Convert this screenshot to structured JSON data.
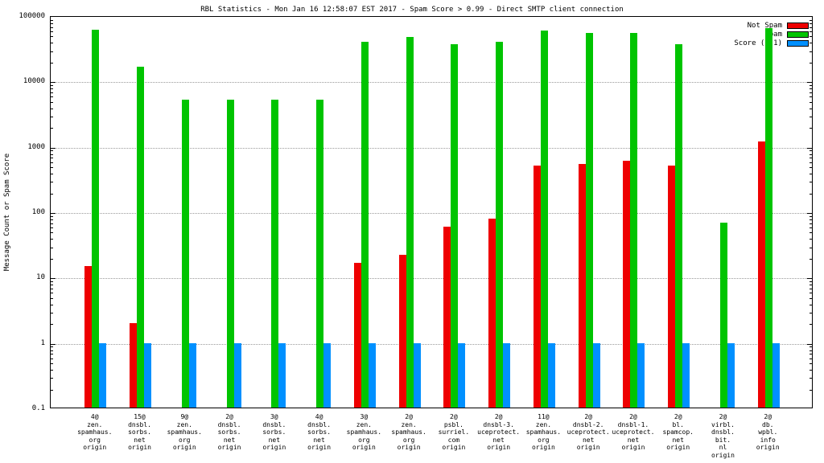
{
  "chart_data": {
    "type": "bar",
    "title": "RBL Statistics - Mon Jan 16 12:58:07 EST 2017 - Spam Score > 0.99 - Direct SMTP client connection",
    "ylabel": "Message Count or Spam Score",
    "yscale": "log",
    "ylim": [
      0.1,
      100000
    ],
    "ytick_labels": [
      "100000",
      "10000",
      "1000",
      "100",
      "10",
      "1",
      "0.1"
    ],
    "grid": "horizontal-dotted",
    "legend_position": "top-right",
    "categories": [
      [
        "4@",
        "zen.",
        "spamhaus.",
        "org",
        "origin"
      ],
      [
        "15@",
        "dnsbl.",
        "sorbs.",
        "net",
        "origin"
      ],
      [
        "9@",
        "zen.",
        "spamhaus.",
        "org",
        "origin"
      ],
      [
        "2@",
        "dnsbl.",
        "sorbs.",
        "net",
        "origin"
      ],
      [
        "3@",
        "dnsbl.",
        "sorbs.",
        "net",
        "origin"
      ],
      [
        "4@",
        "dnsbl.",
        "sorbs.",
        "net",
        "origin"
      ],
      [
        "3@",
        "zen.",
        "spamhaus.",
        "org",
        "origin"
      ],
      [
        "2@",
        "zen.",
        "spamhaus.",
        "org",
        "origin"
      ],
      [
        "2@",
        "psbl.",
        "surriel.",
        "com",
        "origin"
      ],
      [
        "2@",
        "dnsbl-3.",
        "uceprotect.",
        "net",
        "origin"
      ],
      [
        "11@",
        "zen.",
        "spamhaus.",
        "org",
        "origin"
      ],
      [
        "2@",
        "dnsbl-2.",
        "uceprotect.",
        "net",
        "origin"
      ],
      [
        "2@",
        "dnsbl-1.",
        "uceprotect.",
        "net",
        "origin"
      ],
      [
        "2@",
        "bl.",
        "spamcop.",
        "net",
        "origin"
      ],
      [
        "2@",
        "virbl.",
        "dnsbl.",
        "bit.",
        "nl",
        "origin"
      ],
      [
        "2@",
        "db.",
        "wpbl.",
        "info",
        "origin"
      ]
    ],
    "series": [
      {
        "name": "Not Spam",
        "color": "#ee0000",
        "values": [
          15,
          2,
          null,
          null,
          null,
          null,
          17,
          22,
          60,
          80,
          520,
          550,
          620,
          520,
          null,
          1200
        ]
      },
      {
        "name": "Spam",
        "color": "#00c400",
        "values": [
          62000,
          17000,
          5200,
          5200,
          5200,
          5200,
          40000,
          48000,
          37000,
          40000,
          60000,
          55000,
          55000,
          37000,
          70,
          65000
        ]
      },
      {
        "name": "Score (0.1)",
        "color": "#0090ff",
        "values": [
          1,
          1,
          1,
          1,
          1,
          1,
          1,
          1,
          1,
          1,
          1,
          1,
          1,
          1,
          1,
          1
        ]
      }
    ]
  }
}
